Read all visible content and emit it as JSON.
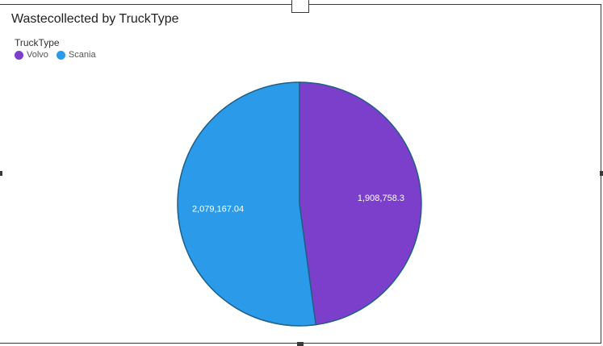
{
  "chart_data": {
    "type": "pie",
    "title": "Wastecollected by TruckType",
    "legend_title": "TruckType",
    "legend_position": "top-left",
    "categories": [
      "Volvo",
      "Scania"
    ],
    "values": [
      1908758.3,
      2079167.04
    ],
    "labels": [
      "1,908,758.3",
      "2,079,167.04"
    ],
    "colors": [
      "#7b3fcc",
      "#2b9be9"
    ]
  }
}
